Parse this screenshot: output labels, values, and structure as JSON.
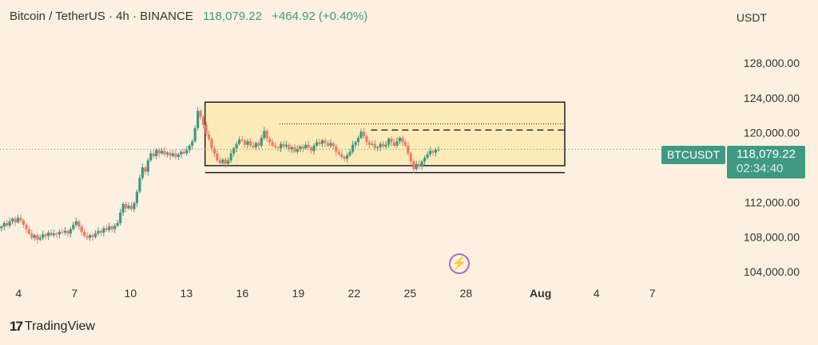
{
  "header": {
    "symbol": "Bitcoin / TetherUS · 4h · BINANCE",
    "price": "118,079.22",
    "change": "+464.92 (+0.40%)"
  },
  "axis_unit": "USDT",
  "badge": {
    "name": "BTCUSDT",
    "price": "118,079.22",
    "countdown": "02:34:40"
  },
  "branding": {
    "logo_mark": "17",
    "name": "TradingView"
  },
  "icons": {
    "event": "lightning-icon"
  },
  "colors": {
    "up": "#3f9a83",
    "down": "#ef7c68",
    "background": "#fdf0e0",
    "range_fill": "#fcebb8",
    "event": "#b76bb0"
  },
  "chart_data": {
    "type": "candlestick",
    "symbol": "BTCUSDT",
    "interval": "4h",
    "y_ticks": [
      "128,000.00",
      "124,000.00",
      "120,000.00",
      "116,000.00",
      "112,000.00",
      "108,000.00",
      "104,000.00"
    ],
    "y_tick_values": [
      128000,
      124000,
      120000,
      116000,
      112000,
      108000,
      104000
    ],
    "x_ticks": [
      "4",
      "7",
      "10",
      "13",
      "16",
      "19",
      "22",
      "25",
      "28",
      "Aug",
      "4",
      "7"
    ],
    "x_tick_days": [
      4,
      7,
      10,
      13,
      16,
      19,
      22,
      25,
      28,
      32,
      35,
      38
    ],
    "bold_ticks": [
      "Aug"
    ],
    "ylim": [
      103000,
      132500
    ],
    "xlim": [
      3.0,
      42.0
    ],
    "last_price": 118079.22,
    "range_box": {
      "start_day": 14.0,
      "end_day": 33.3,
      "top": 123500,
      "bottom": 116200
    },
    "lower_line": {
      "start_day": 14.0,
      "end_day": 33.3,
      "value": 115400
    },
    "dotted_line": {
      "start_day": 18.0,
      "end_day": 33.3,
      "value": 121000
    },
    "dashed_line": {
      "start_day": 22.9,
      "end_day": 33.3,
      "value": 120300
    },
    "closes": [
      109200,
      109600,
      109300,
      109800,
      110100,
      109700,
      110200,
      109900,
      109400,
      108900,
      108400,
      107900,
      108200,
      107700,
      107900,
      108300,
      108100,
      108500,
      108200,
      108400,
      108300,
      108600,
      108500,
      108700,
      108400,
      108900,
      109400,
      109800,
      109200,
      108600,
      108100,
      107900,
      108200,
      108000,
      108400,
      108700,
      108500,
      109000,
      108800,
      109200,
      108900,
      109300,
      109600,
      110800,
      111800,
      111300,
      111600,
      111200,
      111900,
      113200,
      114800,
      116000,
      115500,
      116800,
      117600,
      117300,
      118000,
      117600,
      117900,
      117500,
      117700,
      117300,
      117600,
      117200,
      117500,
      117800,
      117600,
      118000,
      118500,
      119000,
      120500,
      122500,
      121800,
      120900,
      119800,
      119300,
      118200,
      117600,
      116800,
      116500,
      116900,
      116400,
      116800,
      117600,
      118200,
      118700,
      119200,
      119100,
      118600,
      119000,
      118500,
      118300,
      118800,
      118500,
      119400,
      120200,
      119300,
      118900,
      118500,
      118300,
      118200,
      118700,
      118400,
      118600,
      118100,
      118300,
      117800,
      118100,
      118400,
      118200,
      118600,
      118300,
      117900,
      118500,
      118900,
      118700,
      119100,
      118800,
      118500,
      118800,
      118400,
      117800,
      117500,
      117200,
      117000,
      117400,
      117800,
      118600,
      118900,
      119400,
      120100,
      119600,
      118900,
      118600,
      118700,
      118200,
      118300,
      118700,
      118400,
      118600,
      119300,
      118900,
      118500,
      119000,
      119400,
      118900,
      118500,
      117600,
      116700,
      115800,
      116400,
      116100,
      116700,
      117100,
      117500,
      117900,
      117700,
      118000,
      118079
    ]
  }
}
